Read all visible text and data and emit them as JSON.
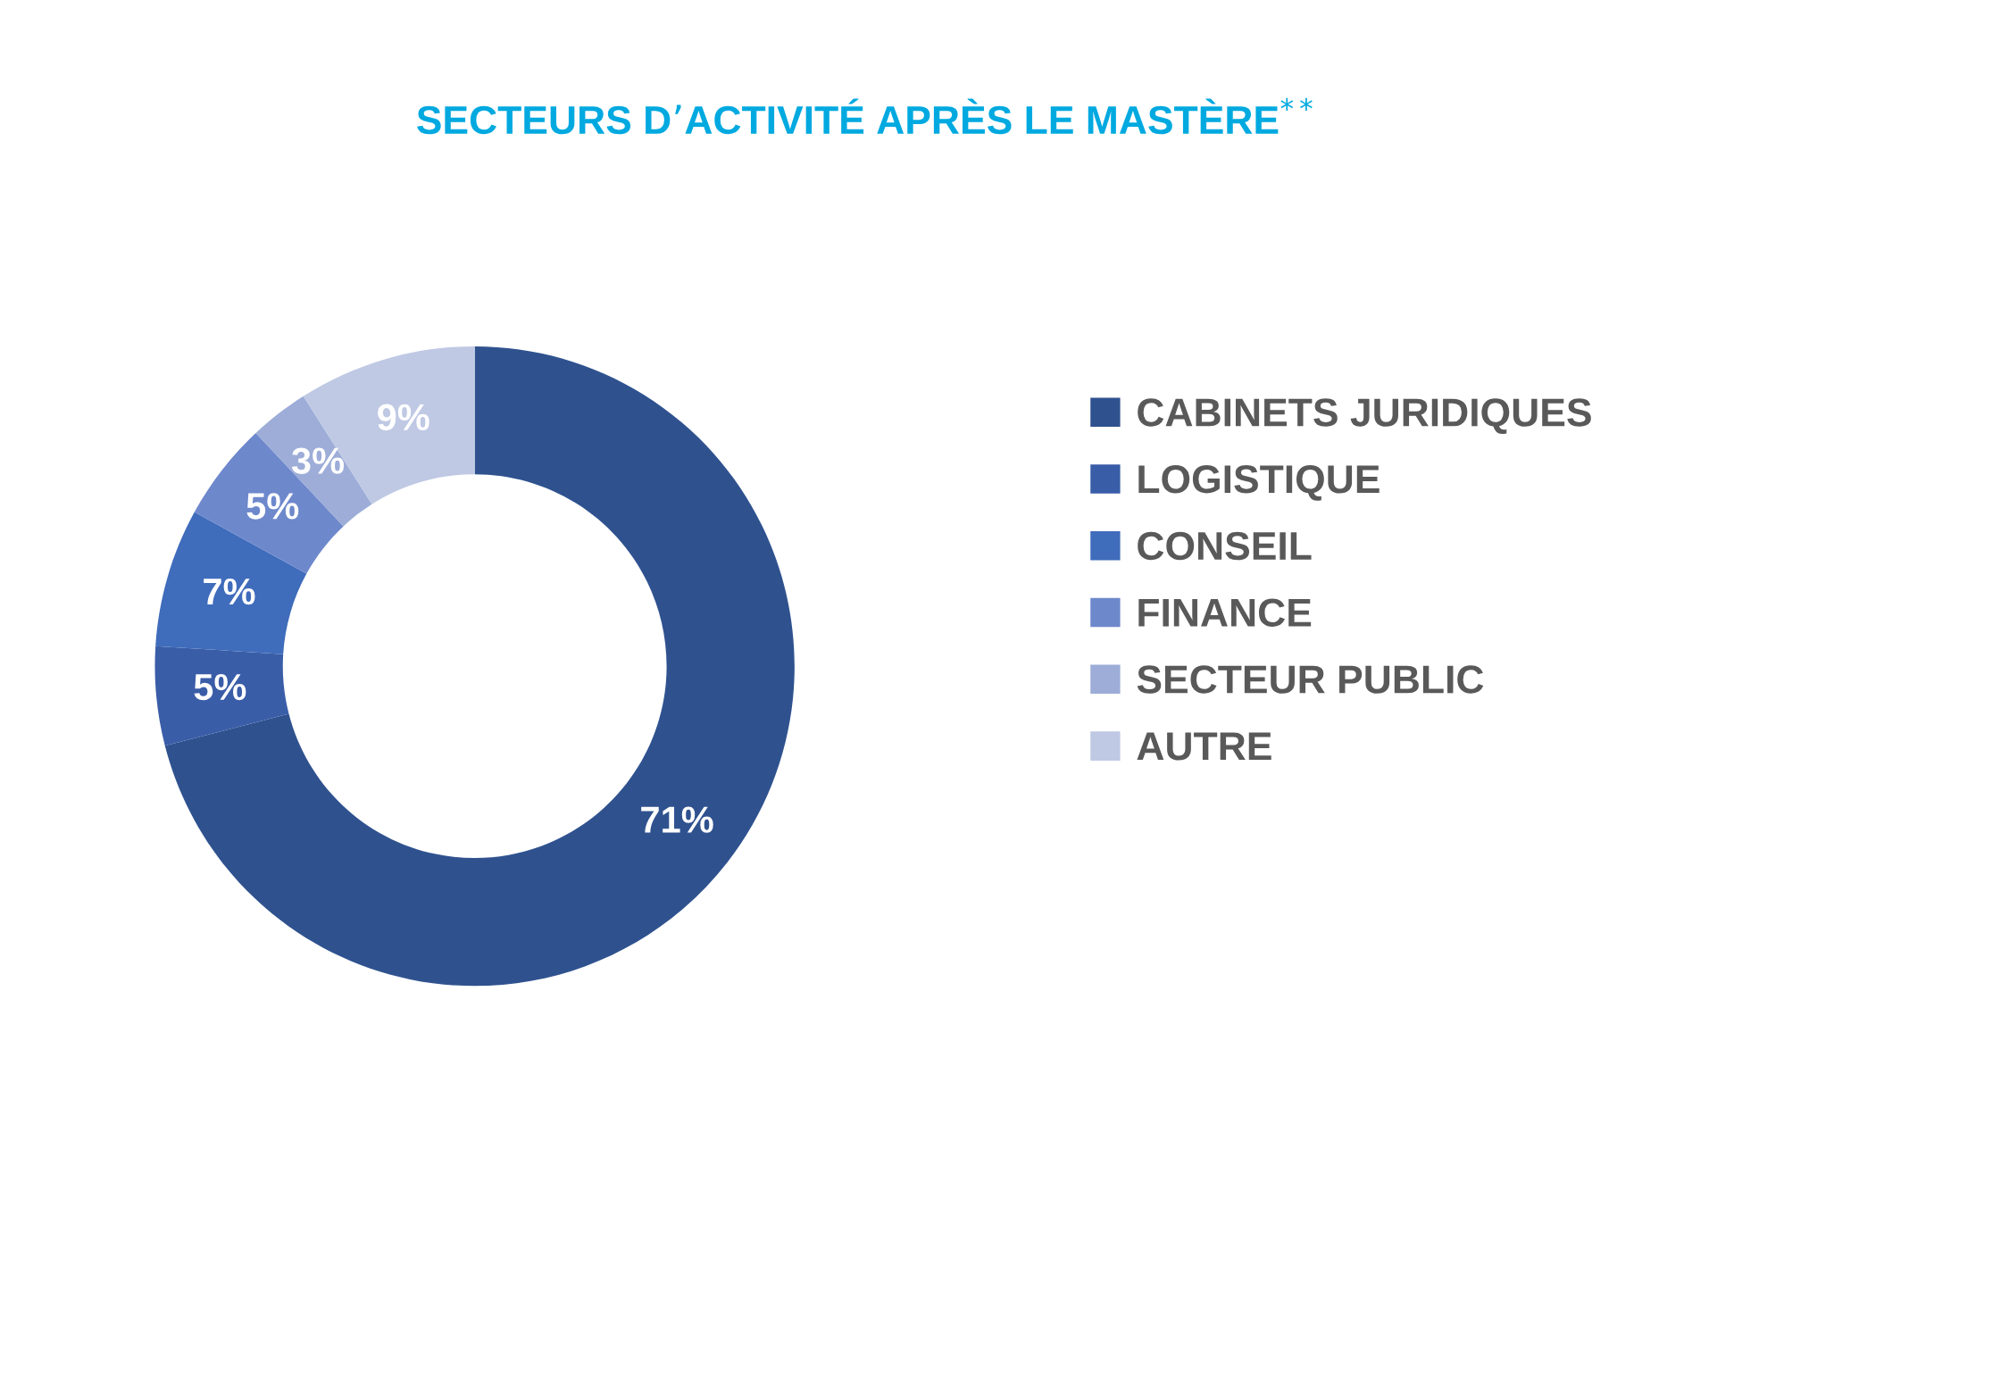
{
  "chart_data": {
    "type": "donut",
    "title": "SECTEURS D’ACTIVITÉ APRÈS LE MASTÈRE$^{**}$",
    "categories": [
      "CABINETS JURIDIQUES",
      "LOGISTIQUE",
      "CONSEIL",
      "FINANCE",
      "SECTEUR PUBLIC",
      "AUTRE"
    ],
    "values": [
      71,
      5,
      7,
      5,
      3,
      9
    ],
    "value_labels": [
      "71%",
      "5%",
      "7%",
      "5%",
      "3%",
      "9%"
    ],
    "colors": [
      "#2f528f",
      "#3a5da8",
      "#3f6cbb",
      "#6e88cc",
      "#9dadd8",
      "#bfc9e4"
    ],
    "legend": "right"
  }
}
